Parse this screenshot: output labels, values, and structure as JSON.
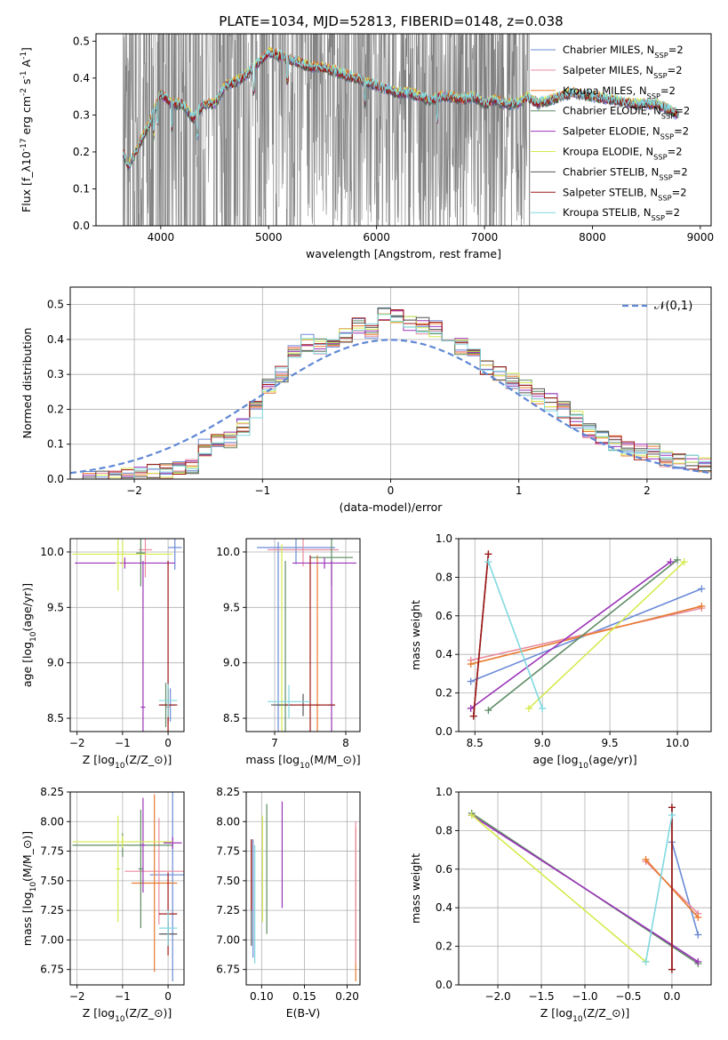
{
  "figure_title": "PLATE=1034, MJD=52813, FIBERID=0148, z=0.038",
  "models": [
    {
      "key": "cm",
      "name": "Chabrier MILES, N_{SSP}=2",
      "color": "#6a8bd6"
    },
    {
      "key": "sm",
      "name": "Salpeter MILES, N_{SSP}=2",
      "color": "#e88ca0"
    },
    {
      "key": "km",
      "name": "Kroupa MILES, N_{SSP}=2",
      "color": "#e87a2e"
    },
    {
      "key": "ce",
      "name": "Chabrier ELODIE, N_{SSP}=2",
      "color": "#5e8c64"
    },
    {
      "key": "se",
      "name": "Salpeter ELODIE, N_{SSP}=2",
      "color": "#9b34b8"
    },
    {
      "key": "ke",
      "name": "Kroupa ELODIE, N_{SSP}=2",
      "color": "#d6ea4e"
    },
    {
      "key": "cs",
      "name": "Chabrier STELIB, N_{SSP}=2",
      "color": "#555555"
    },
    {
      "key": "ss",
      "name": "Salpeter STELIB, N_{SSP}=2",
      "color": "#a01818"
    },
    {
      "key": "ks",
      "name": "Kroupa STELIB, N_{SSP}=2",
      "color": "#80d8e0"
    }
  ],
  "chart_data": [
    {
      "id": "spectrum",
      "type": "line",
      "xlabel": "wavelength [Angstrom, rest frame]",
      "ylabel": "Flux [f_λ10^{-17} erg cm^{-2} s^{-1} A^{-1}]",
      "xlim": [
        3400,
        9100
      ],
      "ylim": [
        0,
        0.52
      ],
      "xticks": [
        4000,
        5000,
        6000,
        7000,
        8000,
        9000
      ],
      "yticks": [
        0.0,
        0.1,
        0.2,
        0.3,
        0.4,
        0.5
      ],
      "grid": false,
      "legend": "right",
      "data_color": "#808080",
      "data_x_range": [
        3650,
        8800
      ],
      "continuum": {
        "x": [
          3650,
          3700,
          3800,
          3900,
          4000,
          4100,
          4200,
          4300,
          4400,
          4500,
          4600,
          4700,
          4800,
          4900,
          5000,
          5100,
          5200,
          5300,
          5400,
          5500,
          5600,
          5700,
          5800,
          5900,
          6000,
          6100,
          6200,
          6300,
          6400,
          6500,
          6600,
          6700,
          6800,
          6900,
          7000,
          7100,
          7200,
          7300,
          7400,
          7500,
          7600,
          7800,
          8000,
          8200,
          8400,
          8600,
          8800
        ],
        "y": [
          0.2,
          0.16,
          0.22,
          0.28,
          0.36,
          0.33,
          0.33,
          0.29,
          0.33,
          0.33,
          0.38,
          0.39,
          0.41,
          0.44,
          0.47,
          0.46,
          0.45,
          0.44,
          0.43,
          0.43,
          0.42,
          0.41,
          0.4,
          0.39,
          0.38,
          0.37,
          0.36,
          0.36,
          0.35,
          0.34,
          0.35,
          0.35,
          0.34,
          0.35,
          0.33,
          0.34,
          0.33,
          0.33,
          0.35,
          0.33,
          0.34,
          0.36,
          0.35,
          0.34,
          0.33,
          0.33,
          0.3
        ]
      }
    },
    {
      "id": "residuals",
      "type": "bar",
      "xlabel": "(data-model)/error",
      "ylabel": "Normed distribution",
      "xlim": [
        -2.5,
        2.5
      ],
      "ylim": [
        0,
        0.55
      ],
      "xticks": [
        -2,
        -1,
        0,
        1,
        2
      ],
      "yticks": [
        0.0,
        0.1,
        0.2,
        0.3,
        0.4,
        0.5
      ],
      "grid": true,
      "legend": "top-right",
      "gauss_label": "𝒩(0,1)",
      "gauss_color": "#5f87d4",
      "bin_edges": [
        -2.5,
        -2.4,
        -2.3,
        -2.2,
        -2.1,
        -2.0,
        -1.9,
        -1.8,
        -1.7,
        -1.6,
        -1.5,
        -1.4,
        -1.3,
        -1.2,
        -1.1,
        -1.0,
        -0.9,
        -0.8,
        -0.7,
        -0.6,
        -0.5,
        -0.4,
        -0.3,
        -0.2,
        -0.1,
        0.0,
        0.1,
        0.2,
        0.3,
        0.4,
        0.5,
        0.6,
        0.7,
        0.8,
        0.9,
        1.0,
        1.1,
        1.2,
        1.3,
        1.4,
        1.5,
        1.6,
        1.7,
        1.8,
        1.9,
        2.0,
        2.1,
        2.2,
        2.3,
        2.4,
        2.5
      ],
      "base_values": [
        0.0,
        0.0,
        0.0,
        0.0,
        0.01,
        0.01,
        0.02,
        0.02,
        0.03,
        0.04,
        0.09,
        0.11,
        0.11,
        0.15,
        0.2,
        0.27,
        0.3,
        0.36,
        0.39,
        0.38,
        0.39,
        0.41,
        0.44,
        0.42,
        0.47,
        0.46,
        0.45,
        0.44,
        0.43,
        0.41,
        0.38,
        0.35,
        0.32,
        0.3,
        0.28,
        0.26,
        0.24,
        0.22,
        0.2,
        0.17,
        0.14,
        0.12,
        0.1,
        0.09,
        0.08,
        0.08,
        0.06,
        0.05,
        0.05,
        0.04
      ]
    },
    {
      "id": "age_z",
      "type": "scatter",
      "xlabel": "Z [log_{10}(Z/Z_⊙)]",
      "ylabel": "age  [log_{10}(age/yr)]",
      "xlim": [
        -2.15,
        0.35
      ],
      "ylim": [
        8.38,
        10.12
      ],
      "xticks": [
        -2,
        -1,
        0
      ],
      "yticks": [
        8.5,
        9.0,
        9.5,
        10.0
      ],
      "grid": true,
      "points": [
        {
          "m": "cm",
          "x": 0.15,
          "y": 10.04,
          "xe": 0.15,
          "ye": 0.2
        },
        {
          "m": "cm",
          "x": 0.05,
          "y": 8.62,
          "xe": 0.1,
          "ye": 0.15
        },
        {
          "m": "sm",
          "x": -0.5,
          "y": 10.02,
          "xe": 0.15,
          "ye": 0.25
        },
        {
          "m": "sm",
          "x": 0.0,
          "y": 8.6,
          "xe": 0.05,
          "ye": 0.15
        },
        {
          "m": "km",
          "x": 0.0,
          "y": 8.62,
          "xe": 0.05,
          "ye": 0.15
        },
        {
          "m": "ce",
          "x": -0.6,
          "y": 9.99,
          "xe": 0.1,
          "ye": 0.3
        },
        {
          "m": "ce",
          "x": -0.05,
          "y": 8.62,
          "xe": 0.1,
          "ye": 0.2
        },
        {
          "m": "se",
          "x": -0.95,
          "y": 9.9,
          "xe": 1.1,
          "ye": 0.05
        },
        {
          "m": "se",
          "x": -0.55,
          "y": 8.6,
          "xe": 0.05,
          "ye": 1.32
        },
        {
          "m": "ke",
          "x": -1.0,
          "y": 9.98,
          "xe": 1.1,
          "ye": 0.12
        },
        {
          "m": "ke",
          "x": -1.1,
          "y": 9.9,
          "xe": 0.05,
          "ye": 0.25
        },
        {
          "m": "cs",
          "x": 0.0,
          "y": 8.62,
          "xe": 0.2,
          "ye": 0.13
        },
        {
          "m": "ss",
          "x": 0.0,
          "y": 8.62,
          "xe": 0.2,
          "ye": 1.3
        },
        {
          "m": "ks",
          "x": 0.0,
          "y": 8.66,
          "xe": 0.2,
          "ye": 0.15
        }
      ]
    },
    {
      "id": "age_mass",
      "type": "scatter",
      "xlabel": "mass [log_{10}(M/M_⊙)]",
      "ylabel": "",
      "xlim": [
        6.6,
        8.2
      ],
      "ylim": [
        8.38,
        10.12
      ],
      "xticks": [
        7,
        8
      ],
      "yticks": [
        8.5,
        9.0,
        9.5,
        10.0
      ],
      "grid": true,
      "points": [
        {
          "m": "cm",
          "x": 7.3,
          "y": 10.04,
          "xe": 0.55,
          "ye": 0.15
        },
        {
          "m": "cm",
          "x": 7.05,
          "y": 8.62,
          "xe": 0.05,
          "ye": 1.47
        },
        {
          "m": "sm",
          "x": 7.4,
          "y": 10.02,
          "xe": 0.5,
          "ye": 0.15
        },
        {
          "m": "km",
          "x": 7.6,
          "y": 8.62,
          "xe": 0.05,
          "ye": 1.35
        },
        {
          "m": "ce",
          "x": 7.8,
          "y": 9.95,
          "xe": 0.3,
          "ye": 0.25
        },
        {
          "m": "ce",
          "x": 7.15,
          "y": 8.62,
          "xe": 0.1,
          "ye": 1.3
        },
        {
          "m": "se",
          "x": 7.7,
          "y": 9.9,
          "xe": 0.45,
          "ye": 0.05
        },
        {
          "m": "se",
          "x": 7.8,
          "y": 8.62,
          "xe": 0.05,
          "ye": 1.3
        },
        {
          "m": "ke",
          "x": 7.1,
          "y": 8.62,
          "xe": 0.05,
          "ye": 1.45
        },
        {
          "m": "cs",
          "x": 7.4,
          "y": 8.62,
          "xe": 0.45,
          "ye": 0.1
        },
        {
          "m": "ss",
          "x": 7.5,
          "y": 8.62,
          "xe": 0.35,
          "ye": 1.35
        },
        {
          "m": "ks",
          "x": 7.2,
          "y": 8.65,
          "xe": 0.3,
          "ye": 0.15
        }
      ]
    },
    {
      "id": "weight_age",
      "type": "line",
      "xlabel": "age  [log_{10}(age/yr)]",
      "ylabel": "mass weight",
      "xlim": [
        8.38,
        10.25
      ],
      "ylim": [
        0,
        1.0
      ],
      "xticks": [
        8.5,
        9.0,
        9.5,
        10.0
      ],
      "yticks": [
        0.0,
        0.2,
        0.4,
        0.6,
        0.8,
        1.0
      ],
      "grid": true,
      "lines": [
        {
          "m": "cm",
          "x": [
            8.47,
            10.18
          ],
          "y": [
            0.26,
            0.74
          ]
        },
        {
          "m": "sm",
          "x": [
            8.47,
            10.18
          ],
          "y": [
            0.37,
            0.64
          ]
        },
        {
          "m": "km",
          "x": [
            8.47,
            10.18
          ],
          "y": [
            0.35,
            0.65
          ]
        },
        {
          "m": "ce",
          "x": [
            8.6,
            10.0
          ],
          "y": [
            0.11,
            0.89
          ]
        },
        {
          "m": "se",
          "x": [
            8.47,
            9.95
          ],
          "y": [
            0.12,
            0.88
          ]
        },
        {
          "m": "ke",
          "x": [
            8.9,
            10.05
          ],
          "y": [
            0.12,
            0.88
          ]
        },
        {
          "m": "cs",
          "x": [
            8.49,
            8.6
          ],
          "y": [
            0.08,
            0.92
          ]
        },
        {
          "m": "ss",
          "x": [
            8.49,
            8.6
          ],
          "y": [
            0.08,
            0.92
          ]
        },
        {
          "m": "ks",
          "x": [
            8.6,
            9.0
          ],
          "y": [
            0.88,
            0.12
          ]
        }
      ]
    },
    {
      "id": "mass_z",
      "type": "scatter",
      "xlabel": "Z [log_{10}(Z/Z_⊙)]",
      "ylabel": "mass [log_{10}(M/M_⊙)]",
      "xlim": [
        -2.15,
        0.35
      ],
      "ylim": [
        6.62,
        8.25
      ],
      "xticks": [
        -2,
        -1,
        0
      ],
      "yticks": [
        6.75,
        7.0,
        7.25,
        7.5,
        7.75,
        8.0,
        8.25
      ],
      "grid": true,
      "points": [
        {
          "m": "cm",
          "x": 0.1,
          "y": 7.55,
          "xe": 0.5,
          "ye": 0.9
        },
        {
          "m": "sm",
          "x": -0.2,
          "y": 7.58,
          "xe": 0.75,
          "ye": 0.45
        },
        {
          "m": "km",
          "x": -0.3,
          "y": 7.48,
          "xe": 0.5,
          "ye": 0.75
        },
        {
          "m": "ce",
          "x": -1.0,
          "y": 7.8,
          "xe": 1.1,
          "ye": 0.1
        },
        {
          "m": "ce",
          "x": -0.6,
          "y": 7.6,
          "xe": 0.05,
          "ye": 0.5
        },
        {
          "m": "se",
          "x": -0.55,
          "y": 7.8,
          "xe": 0.05,
          "ye": 0.4
        },
        {
          "m": "se",
          "x": 0.1,
          "y": 7.82,
          "xe": 0.2,
          "ye": 0.05
        },
        {
          "m": "ke",
          "x": -1.0,
          "y": 7.83,
          "xe": 1.1,
          "ye": 0.05
        },
        {
          "m": "ke",
          "x": -1.1,
          "y": 7.6,
          "xe": 0.05,
          "ye": 0.45
        },
        {
          "m": "cs",
          "x": 0.0,
          "y": 7.05,
          "xe": 0.2,
          "ye": 0.1
        },
        {
          "m": "ss",
          "x": 0.0,
          "y": 7.22,
          "xe": 0.2,
          "ye": 0.35
        },
        {
          "m": "ks",
          "x": 0.0,
          "y": 7.1,
          "xe": 0.2,
          "ye": 0.15
        }
      ]
    },
    {
      "id": "mass_ebv",
      "type": "scatter",
      "xlabel": "E(B-V)",
      "ylabel": "",
      "xlim": [
        0.082,
        0.215
      ],
      "ylim": [
        6.62,
        8.25
      ],
      "xticks": [
        0.1,
        0.15,
        0.2
      ],
      "yticks": [
        6.75,
        7.0,
        7.25,
        7.5,
        7.75,
        8.0,
        8.25
      ],
      "grid": true,
      "points": [
        {
          "m": "cm",
          "x": 0.09,
          "y": 7.35,
          "xe": 0,
          "ye": 0.5
        },
        {
          "m": "km",
          "x": 0.21,
          "y": 7.3,
          "xe": 0,
          "ye": 0.65
        },
        {
          "m": "sm",
          "x": 0.21,
          "y": 7.4,
          "xe": 0,
          "ye": 0.6
        },
        {
          "m": "ce",
          "x": 0.106,
          "y": 7.6,
          "xe": 0,
          "ye": 0.55
        },
        {
          "m": "se",
          "x": 0.124,
          "y": 7.72,
          "xe": 0,
          "ye": 0.45
        },
        {
          "m": "ke",
          "x": 0.101,
          "y": 7.6,
          "xe": 0,
          "ye": 0.45
        },
        {
          "m": "cs",
          "x": 0.088,
          "y": 7.4,
          "xe": 0,
          "ye": 0.45
        },
        {
          "m": "ss",
          "x": 0.088,
          "y": 7.55,
          "xe": 0,
          "ye": 0.3
        },
        {
          "m": "ks",
          "x": 0.092,
          "y": 7.3,
          "xe": 0,
          "ye": 0.5
        }
      ]
    },
    {
      "id": "weight_z",
      "type": "line",
      "xlabel": "Z [log_{10}(Z/Z_⊙)]",
      "ylabel": "mass weight",
      "xlim": [
        -2.45,
        0.45
      ],
      "ylim": [
        0,
        1.0
      ],
      "xticks": [
        -2.0,
        -1.5,
        -1.0,
        -0.5,
        0.0
      ],
      "yticks": [
        0.0,
        0.2,
        0.4,
        0.6,
        0.8,
        1.0
      ],
      "grid": true,
      "lines": [
        {
          "m": "cm",
          "x": [
            0.0,
            0.3
          ],
          "y": [
            0.74,
            0.26
          ]
        },
        {
          "m": "sm",
          "x": [
            -0.3,
            0.3
          ],
          "y": [
            0.64,
            0.37
          ]
        },
        {
          "m": "km",
          "x": [
            -0.3,
            0.3
          ],
          "y": [
            0.65,
            0.35
          ]
        },
        {
          "m": "ce",
          "x": [
            -2.3,
            0.3
          ],
          "y": [
            0.89,
            0.11
          ]
        },
        {
          "m": "se",
          "x": [
            -2.3,
            0.3
          ],
          "y": [
            0.88,
            0.12
          ]
        },
        {
          "m": "ke",
          "x": [
            -2.3,
            -0.3
          ],
          "y": [
            0.88,
            0.12
          ]
        },
        {
          "m": "cs",
          "x": [
            0.0,
            0.0
          ],
          "y": [
            0.08,
            0.92
          ]
        },
        {
          "m": "ss",
          "x": [
            0.0,
            0.0
          ],
          "y": [
            0.08,
            0.92
          ]
        },
        {
          "m": "ks",
          "x": [
            -0.3,
            0.0
          ],
          "y": [
            0.12,
            0.88
          ]
        }
      ]
    }
  ]
}
